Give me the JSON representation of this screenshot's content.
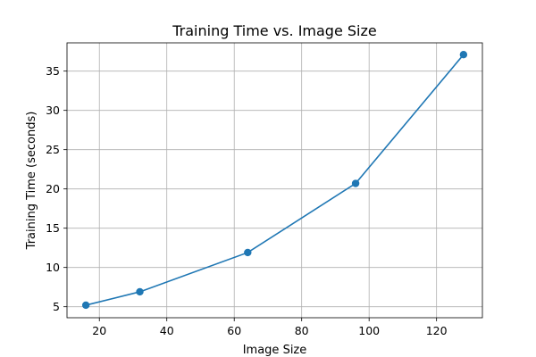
{
  "chart_data": {
    "type": "line",
    "title": "Training Time vs. Image Size",
    "xlabel": "Image Size",
    "ylabel": "Training Time (seconds)",
    "xlim": [
      10.4,
      133.6
    ],
    "ylim": [
      3.6,
      38.6
    ],
    "xticks": [
      20,
      40,
      60,
      80,
      100,
      120
    ],
    "yticks": [
      5,
      10,
      15,
      20,
      25,
      30,
      35
    ],
    "grid": true,
    "series": [
      {
        "x": [
          16,
          32,
          64,
          96,
          128
        ],
        "y": [
          5.2,
          6.9,
          11.9,
          20.7,
          37.1
        ],
        "color": "#1f77b4",
        "marker": "circle"
      }
    ]
  }
}
